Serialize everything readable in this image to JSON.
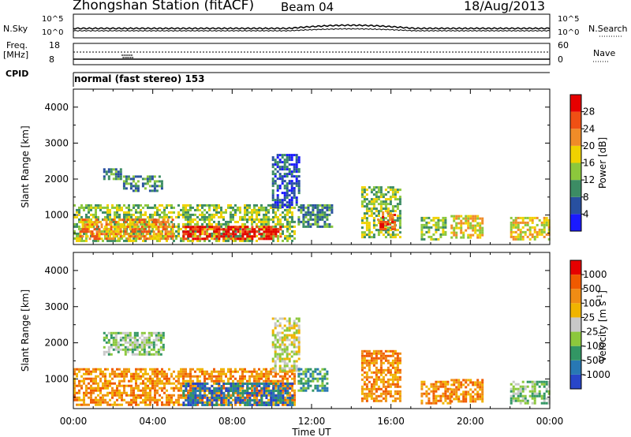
{
  "header": {
    "title": "Zhongshan Station (fitACF)",
    "beam": "Beam 04",
    "date": "18/Aug/2013"
  },
  "status_panels": {
    "nsky_label": "N.Sky",
    "nsky_ticks": [
      "10^5",
      "10^0"
    ],
    "nsearch_label": "N.Search",
    "nsearch_ticks": [
      "10^5",
      "10^0"
    ],
    "freq_label_1": "Freq.",
    "freq_label_2": "[MHz]",
    "freq_ticks": [
      "18",
      "8"
    ],
    "nave_label": "Nave",
    "nave_ticks": [
      "60",
      "0"
    ],
    "cpid_label": "CPID",
    "cpid_text": "normal (fast stereo) 153"
  },
  "chart_data": [
    {
      "type": "heatmap",
      "panel": "power",
      "ylabel": "Slant Range [km]",
      "ytick_labels": [
        "1000",
        "2000",
        "3000",
        "4000"
      ],
      "ylim": [
        180,
        4500
      ],
      "xlim": [
        0,
        24
      ],
      "xtick_labels": [
        "00:00",
        "04:00",
        "08:00",
        "12:00",
        "16:00",
        "20:00",
        "00:00"
      ],
      "colorbar": {
        "label": "Power [dB]",
        "ticks": [
          "4",
          "8",
          "12",
          "16",
          "20",
          "24",
          "28"
        ],
        "colors": [
          "#1a1aff",
          "#2850a0",
          "#3c8c64",
          "#8cc83c",
          "#f0d200",
          "#f08c28",
          "#f05014",
          "#e60000"
        ]
      },
      "echo_regions": [
        {
          "t0": 0.0,
          "t1": 11.2,
          "r0": 300,
          "r1": 1300,
          "level": 3
        },
        {
          "t0": 5.5,
          "t1": 10.5,
          "r0": 350,
          "r1": 700,
          "level": 7
        },
        {
          "t0": 0.3,
          "t1": 5.0,
          "r0": 350,
          "r1": 900,
          "level": 5
        },
        {
          "t0": 1.5,
          "t1": 2.4,
          "r0": 2000,
          "r1": 2300,
          "level": 2
        },
        {
          "t0": 2.5,
          "t1": 4.5,
          "r0": 1700,
          "r1": 2100,
          "level": 2
        },
        {
          "t0": 10.0,
          "t1": 11.4,
          "r0": 1200,
          "r1": 2700,
          "level": 1
        },
        {
          "t0": 11.3,
          "t1": 13.0,
          "r0": 650,
          "r1": 1300,
          "level": 2
        },
        {
          "t0": 14.5,
          "t1": 16.5,
          "r0": 400,
          "r1": 1800,
          "level": 3
        },
        {
          "t0": 15.3,
          "t1": 16.2,
          "r0": 600,
          "r1": 1100,
          "level": 6
        },
        {
          "t0": 17.5,
          "t1": 18.8,
          "r0": 350,
          "r1": 950,
          "level": 3
        },
        {
          "t0": 19.0,
          "t1": 20.6,
          "r0": 350,
          "r1": 1000,
          "level": 4
        },
        {
          "t0": 22.0,
          "t1": 24.0,
          "r0": 300,
          "r1": 950,
          "level": 4
        }
      ]
    },
    {
      "type": "heatmap",
      "panel": "velocity",
      "ylabel": "Slant Range [km]",
      "ytick_labels": [
        "1000",
        "2000",
        "3000",
        "4000"
      ],
      "ylim": [
        180,
        4500
      ],
      "xlim": [
        0,
        24
      ],
      "xtick_labels": [
        "00:00",
        "04:00",
        "08:00",
        "12:00",
        "16:00",
        "20:00",
        "00:00"
      ],
      "xlabel": "Time UT",
      "colorbar": {
        "label_main": "Velocity",
        "label_unit": "[m s",
        "label_exp": "-1",
        "label_close": "]",
        "ticks": [
          "1000",
          "500",
          "100",
          "25",
          "-25",
          "-100",
          "-500",
          "-1000"
        ],
        "colors": [
          "#2846c8",
          "#2878b4",
          "#329664",
          "#8cc83c",
          "#c8c8c8",
          "#f0b400",
          "#f08c14",
          "#f05a00",
          "#e60000"
        ]
      },
      "echo_regions": [
        {
          "t0": 0.0,
          "t1": 11.2,
          "r0": 300,
          "r1": 1300,
          "level": 6
        },
        {
          "t0": 5.5,
          "t1": 11.0,
          "r0": 300,
          "r1": 900,
          "level": 1
        },
        {
          "t0": 1.5,
          "t1": 4.5,
          "r0": 1700,
          "r1": 2300,
          "level": 3
        },
        {
          "t0": 10.0,
          "t1": 11.4,
          "r0": 1200,
          "r1": 2700,
          "level": 4
        },
        {
          "t0": 11.3,
          "t1": 12.8,
          "r0": 650,
          "r1": 1300,
          "level": 2
        },
        {
          "t0": 14.5,
          "t1": 16.5,
          "r0": 400,
          "r1": 1800,
          "level": 6
        },
        {
          "t0": 17.5,
          "t1": 19.0,
          "r0": 350,
          "r1": 950,
          "level": 6
        },
        {
          "t0": 19.0,
          "t1": 20.6,
          "r0": 350,
          "r1": 1000,
          "level": 6
        },
        {
          "t0": 22.0,
          "t1": 24.0,
          "r0": 300,
          "r1": 950,
          "level": 3
        }
      ]
    }
  ]
}
